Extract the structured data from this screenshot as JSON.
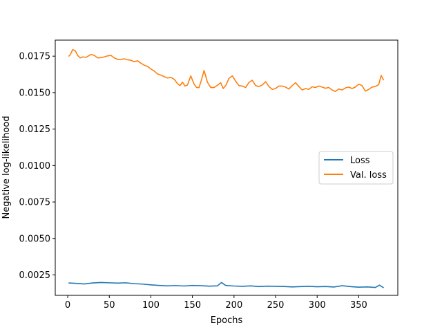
{
  "chart_data": {
    "type": "line",
    "title": "",
    "xlabel": "Epochs",
    "ylabel": "Negative log-likelihood",
    "xlim": [
      -15,
      397
    ],
    "ylim": [
      0.0011,
      0.0186
    ],
    "xticks": [
      0,
      50,
      100,
      150,
      200,
      250,
      300,
      350
    ],
    "yticks": [
      0.0025,
      0.005,
      0.0075,
      0.01,
      0.0125,
      0.015,
      0.0175
    ],
    "ytick_labels": [
      "0.0025",
      "0.0050",
      "0.0075",
      "0.0100",
      "0.0125",
      "0.0150",
      "0.0175"
    ],
    "grid": false,
    "legend_position": "center-right",
    "series": [
      {
        "name": "Loss",
        "color": "#1f77b4",
        "x": [
          1,
          10,
          20,
          30,
          40,
          50,
          60,
          70,
          80,
          90,
          100,
          110,
          120,
          130,
          140,
          150,
          160,
          170,
          180,
          185,
          190,
          200,
          210,
          220,
          230,
          240,
          250,
          260,
          270,
          280,
          290,
          300,
          310,
          320,
          330,
          340,
          350,
          360,
          370,
          375,
          380
        ],
        "y": [
          0.00195,
          0.00192,
          0.00188,
          0.00195,
          0.00198,
          0.00196,
          0.00194,
          0.00196,
          0.0019,
          0.00187,
          0.00182,
          0.00178,
          0.00175,
          0.00177,
          0.00174,
          0.00178,
          0.00176,
          0.00173,
          0.00175,
          0.00198,
          0.00178,
          0.00174,
          0.00172,
          0.00175,
          0.0017,
          0.00173,
          0.00172,
          0.00171,
          0.00168,
          0.0017,
          0.00172,
          0.00169,
          0.00171,
          0.00167,
          0.00176,
          0.0017,
          0.00166,
          0.00168,
          0.00164,
          0.0018,
          0.00162
        ]
      },
      {
        "name": "Val. loss",
        "color": "#ff7f0e",
        "x": [
          1,
          3,
          6,
          9,
          12,
          15,
          18,
          22,
          25,
          28,
          32,
          36,
          40,
          44,
          48,
          52,
          56,
          60,
          64,
          68,
          72,
          76,
          80,
          84,
          88,
          92,
          96,
          100,
          104,
          108,
          112,
          116,
          120,
          124,
          128,
          132,
          135,
          138,
          141,
          144,
          148,
          152,
          155,
          158,
          161,
          164,
          168,
          172,
          176,
          180,
          184,
          187,
          190,
          194,
          198,
          202,
          206,
          210,
          214,
          218,
          222,
          226,
          230,
          234,
          238,
          242,
          246,
          250,
          254,
          258,
          262,
          266,
          270,
          274,
          278,
          282,
          286,
          290,
          294,
          298,
          302,
          306,
          310,
          314,
          318,
          322,
          326,
          330,
          334,
          338,
          342,
          346,
          350,
          354,
          358,
          362,
          366,
          370,
          374,
          377,
          380
        ],
        "y": [
          0.01748,
          0.0176,
          0.01795,
          0.01788,
          0.01755,
          0.01738,
          0.01745,
          0.01742,
          0.01752,
          0.01762,
          0.01755,
          0.01738,
          0.0174,
          0.01745,
          0.01752,
          0.01755,
          0.01738,
          0.01728,
          0.01728,
          0.01732,
          0.01725,
          0.01722,
          0.01712,
          0.01718,
          0.01702,
          0.01688,
          0.0168,
          0.01662,
          0.01648,
          0.01628,
          0.0162,
          0.0161,
          0.016,
          0.01605,
          0.01592,
          0.01562,
          0.01548,
          0.01572,
          0.01545,
          0.01552,
          0.01615,
          0.01558,
          0.01535,
          0.01535,
          0.0159,
          0.01652,
          0.01572,
          0.01535,
          0.01535,
          0.0155,
          0.01568,
          0.01528,
          0.01548,
          0.01598,
          0.01615,
          0.01578,
          0.01548,
          0.01545,
          0.01535,
          0.0157,
          0.01585,
          0.01548,
          0.01542,
          0.01552,
          0.01575,
          0.01542,
          0.01522,
          0.01528,
          0.01545,
          0.01545,
          0.01538,
          0.01525,
          0.01548,
          0.01568,
          0.01542,
          0.01518,
          0.01528,
          0.01522,
          0.0154,
          0.01535,
          0.01545,
          0.01538,
          0.0153,
          0.01535,
          0.01518,
          0.01508,
          0.01525,
          0.01518,
          0.01532,
          0.01538,
          0.01528,
          0.01538,
          0.01558,
          0.01548,
          0.0151,
          0.01522,
          0.01538,
          0.01542,
          0.01555,
          0.01618,
          0.01585
        ]
      }
    ]
  }
}
